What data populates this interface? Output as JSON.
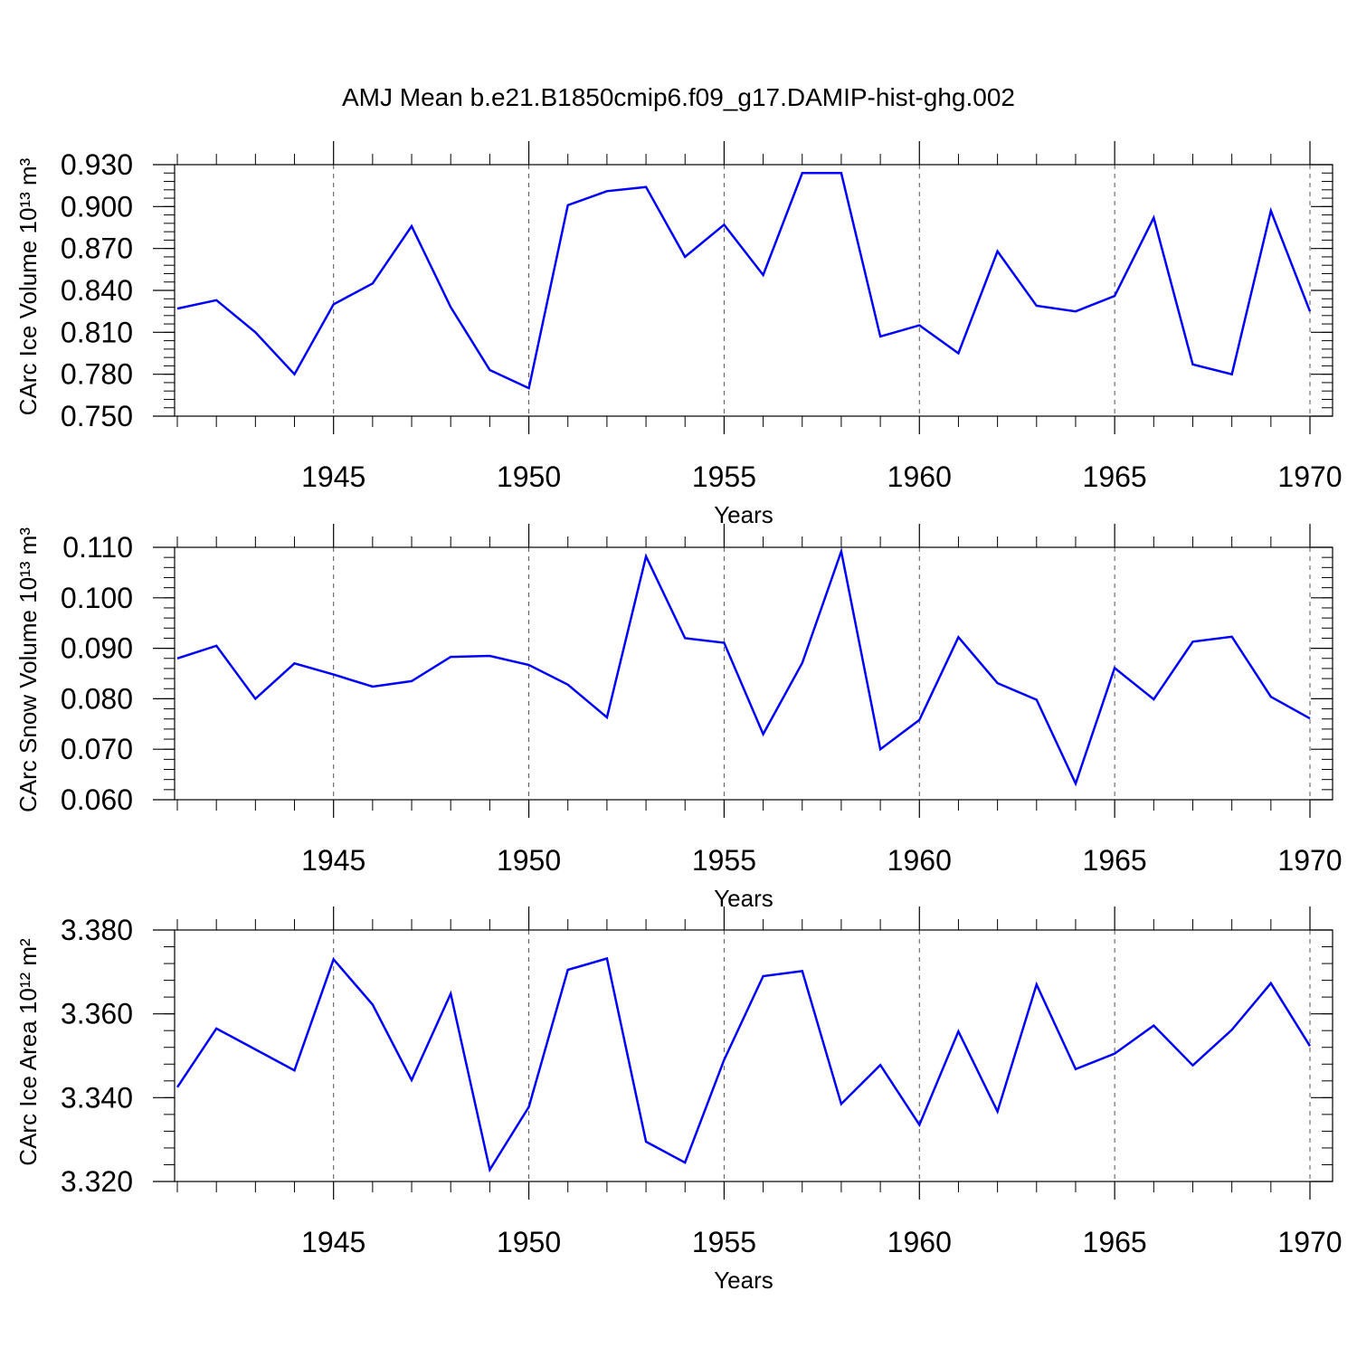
{
  "title": "AMJ Mean b.e21.B1850cmip6.f09_g17.DAMIP-hist-ghg.002",
  "chart_data": [
    {
      "type": "line",
      "ylabel": "CArc Ice Volume 10¹³ m³",
      "xlabel": "Years",
      "xlim": [
        1941,
        1970
      ],
      "ylim": [
        0.75,
        0.93
      ],
      "xticks": [
        1945,
        1950,
        1955,
        1960,
        1965,
        1970
      ],
      "yticks": [
        0.75,
        0.78,
        0.81,
        0.84,
        0.87,
        0.9,
        0.93
      ],
      "ytick_labels": [
        "0.750",
        "0.780",
        "0.810",
        "0.840",
        "0.870",
        "0.900",
        "0.930"
      ],
      "grid": "dashed vertical lines at x ticks",
      "color": "#0000ff",
      "x": [
        1941,
        1942,
        1943,
        1944,
        1945,
        1946,
        1947,
        1948,
        1949,
        1950,
        1951,
        1952,
        1953,
        1954,
        1955,
        1956,
        1957,
        1958,
        1959,
        1960,
        1961,
        1962,
        1963,
        1964,
        1965,
        1966,
        1967,
        1968,
        1969,
        1970
      ],
      "values": [
        0.827,
        0.833,
        0.81,
        0.78,
        0.83,
        0.845,
        0.886,
        0.828,
        0.783,
        0.77,
        0.901,
        0.911,
        0.914,
        0.864,
        0.887,
        0.851,
        0.924,
        0.924,
        0.807,
        0.815,
        0.795,
        0.868,
        0.829,
        0.825,
        0.836,
        0.892,
        0.787,
        0.78,
        0.897,
        0.825
      ]
    },
    {
      "type": "line",
      "ylabel": "CArc Snow Volume 10¹³ m³",
      "xlabel": "Years",
      "xlim": [
        1941,
        1970
      ],
      "ylim": [
        0.06,
        0.11
      ],
      "xticks": [
        1945,
        1950,
        1955,
        1960,
        1965,
        1970
      ],
      "yticks": [
        0.06,
        0.07,
        0.08,
        0.09,
        0.1,
        0.11
      ],
      "ytick_labels": [
        "0.060",
        "0.070",
        "0.080",
        "0.090",
        "0.100",
        "0.110"
      ],
      "grid": "dashed vertical lines at x ticks",
      "color": "#0000ff",
      "x": [
        1941,
        1942,
        1943,
        1944,
        1945,
        1946,
        1947,
        1948,
        1949,
        1950,
        1951,
        1952,
        1953,
        1954,
        1955,
        1956,
        1957,
        1958,
        1959,
        1960,
        1961,
        1962,
        1963,
        1964,
        1965,
        1966,
        1967,
        1968,
        1969,
        1970
      ],
      "values": [
        0.088,
        0.0905,
        0.08,
        0.087,
        0.0848,
        0.0824,
        0.0835,
        0.0883,
        0.0885,
        0.0867,
        0.0828,
        0.0763,
        0.1082,
        0.092,
        0.0911,
        0.073,
        0.0871,
        0.1092,
        0.07,
        0.0758,
        0.0922,
        0.0831,
        0.0798,
        0.0632,
        0.0861,
        0.0799,
        0.0913,
        0.0923,
        0.0804,
        0.0761
      ]
    },
    {
      "type": "line",
      "ylabel": "CArc Ice Area 10¹² m²",
      "xlabel": "Years",
      "xlim": [
        1941,
        1970
      ],
      "ylim": [
        3.32,
        3.38
      ],
      "xticks": [
        1945,
        1950,
        1955,
        1960,
        1965,
        1970
      ],
      "yticks": [
        3.32,
        3.34,
        3.36,
        3.38
      ],
      "ytick_labels": [
        "3.320",
        "3.340",
        "3.360",
        "3.380"
      ],
      "grid": "dashed vertical lines at x ticks",
      "color": "#0000ff",
      "x": [
        1941,
        1942,
        1943,
        1944,
        1945,
        1946,
        1947,
        1948,
        1949,
        1950,
        1951,
        1952,
        1953,
        1954,
        1955,
        1956,
        1957,
        1958,
        1959,
        1960,
        1961,
        1962,
        1963,
        1964,
        1965,
        1966,
        1967,
        1968,
        1969,
        1970
      ],
      "values": [
        3.3425,
        3.3565,
        3.3515,
        3.3465,
        3.373,
        3.3622,
        3.3442,
        3.3648,
        3.3228,
        3.3378,
        3.3705,
        3.3732,
        3.3295,
        3.3245,
        3.349,
        3.369,
        3.3702,
        3.3385,
        3.3478,
        3.3335,
        3.3558,
        3.3367,
        3.367,
        3.3468,
        3.3505,
        3.3572,
        3.3477,
        3.3562,
        3.3673,
        3.3523
      ]
    }
  ]
}
